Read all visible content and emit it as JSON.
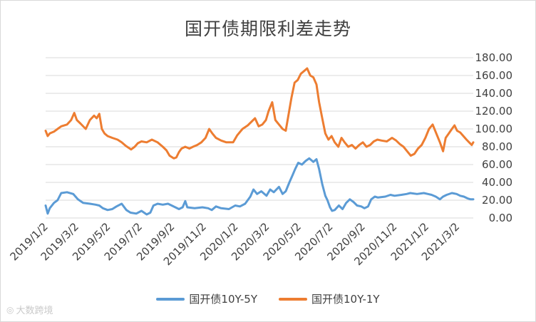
{
  "chart_data": {
    "type": "line",
    "title": "国开债期限利差走势",
    "xlabel": "",
    "ylabel": "",
    "ylim": [
      0,
      180
    ],
    "yticks": [
      "0.00",
      "20.00",
      "40.00",
      "60.00",
      "80.00",
      "100.00",
      "120.00",
      "140.00",
      "160.00",
      "180.00"
    ],
    "grid": true,
    "legend_position": "bottom",
    "x_start": "2019/1/2",
    "x_end": "2021/4/2",
    "categories": [
      "2019/1/2",
      "2019/3/2",
      "2019/5/2",
      "2019/7/2",
      "2019/9/2",
      "2019/11/2",
      "2020/1/2",
      "2020/3/2",
      "2020/5/2",
      "2020/7/2",
      "2020/9/2",
      "2020/11/2",
      "2021/1/2",
      "2021/3/2"
    ],
    "series": [
      {
        "name": "国开债10Y-5Y",
        "color": "#5b9bd5",
        "points": [
          [
            "2019-01-02",
            14
          ],
          [
            "2019-01-06",
            5
          ],
          [
            "2019-01-10",
            11
          ],
          [
            "2019-01-18",
            17
          ],
          [
            "2019-01-25",
            20
          ],
          [
            "2019-02-01",
            28
          ],
          [
            "2019-02-12",
            29
          ],
          [
            "2019-02-24",
            27
          ],
          [
            "2019-03-05",
            21
          ],
          [
            "2019-03-15",
            17
          ],
          [
            "2019-03-28",
            16
          ],
          [
            "2019-04-08",
            15
          ],
          [
            "2019-04-15",
            14
          ],
          [
            "2019-04-22",
            11
          ],
          [
            "2019-05-01",
            9
          ],
          [
            "2019-05-10",
            10
          ],
          [
            "2019-05-18",
            13
          ],
          [
            "2019-05-28",
            16
          ],
          [
            "2019-06-06",
            9
          ],
          [
            "2019-06-14",
            6
          ],
          [
            "2019-06-25",
            5
          ],
          [
            "2019-07-05",
            8
          ],
          [
            "2019-07-15",
            4
          ],
          [
            "2019-07-22",
            6
          ],
          [
            "2019-07-28",
            14
          ],
          [
            "2019-08-05",
            16
          ],
          [
            "2019-08-15",
            15
          ],
          [
            "2019-08-25",
            16
          ],
          [
            "2019-09-01",
            14
          ],
          [
            "2019-09-08",
            12
          ],
          [
            "2019-09-15",
            10
          ],
          [
            "2019-09-22",
            12
          ],
          [
            "2019-09-27",
            19
          ],
          [
            "2019-10-01",
            12
          ],
          [
            "2019-10-15",
            11
          ],
          [
            "2019-10-30",
            12
          ],
          [
            "2019-11-10",
            11
          ],
          [
            "2019-11-17",
            9
          ],
          [
            "2019-11-25",
            13
          ],
          [
            "2019-12-05",
            11
          ],
          [
            "2019-12-20",
            10
          ],
          [
            "2020-01-01",
            14
          ],
          [
            "2020-01-10",
            13
          ],
          [
            "2020-01-20",
            16
          ],
          [
            "2020-01-30",
            24
          ],
          [
            "2020-02-05",
            32
          ],
          [
            "2020-02-12",
            27
          ],
          [
            "2020-02-20",
            30
          ],
          [
            "2020-03-01",
            25
          ],
          [
            "2020-03-08",
            32
          ],
          [
            "2020-03-15",
            29
          ],
          [
            "2020-03-25",
            35
          ],
          [
            "2020-04-01",
            27
          ],
          [
            "2020-04-07",
            30
          ],
          [
            "2020-04-14",
            40
          ],
          [
            "2020-04-20",
            48
          ],
          [
            "2020-04-25",
            55
          ],
          [
            "2020-05-01",
            62
          ],
          [
            "2020-05-08",
            60
          ],
          [
            "2020-05-15",
            64
          ],
          [
            "2020-05-22",
            67
          ],
          [
            "2020-05-30",
            63
          ],
          [
            "2020-06-05",
            66
          ],
          [
            "2020-06-10",
            55
          ],
          [
            "2020-06-16",
            38
          ],
          [
            "2020-06-22",
            25
          ],
          [
            "2020-06-26",
            20
          ],
          [
            "2020-07-01",
            12
          ],
          [
            "2020-07-05",
            8
          ],
          [
            "2020-07-10",
            9
          ],
          [
            "2020-07-18",
            14
          ],
          [
            "2020-07-25",
            10
          ],
          [
            "2020-08-01",
            17
          ],
          [
            "2020-08-08",
            21
          ],
          [
            "2020-08-15",
            18
          ],
          [
            "2020-08-22",
            14
          ],
          [
            "2020-08-30",
            13
          ],
          [
            "2020-09-05",
            11
          ],
          [
            "2020-09-12",
            13
          ],
          [
            "2020-09-18",
            21
          ],
          [
            "2020-09-25",
            24
          ],
          [
            "2020-10-01",
            23
          ],
          [
            "2020-10-15",
            24
          ],
          [
            "2020-10-25",
            26
          ],
          [
            "2020-11-02",
            25
          ],
          [
            "2020-11-15",
            26
          ],
          [
            "2020-11-25",
            27
          ],
          [
            "2020-12-02",
            28
          ],
          [
            "2020-12-15",
            27
          ],
          [
            "2020-12-28",
            28
          ],
          [
            "2021-01-05",
            27
          ],
          [
            "2021-01-12",
            26
          ],
          [
            "2021-01-20",
            24
          ],
          [
            "2021-01-28",
            21
          ],
          [
            "2021-02-03",
            24
          ],
          [
            "2021-02-10",
            26
          ],
          [
            "2021-02-20",
            28
          ],
          [
            "2021-03-01",
            27
          ],
          [
            "2021-03-08",
            25
          ],
          [
            "2021-03-15",
            24
          ],
          [
            "2021-03-22",
            22
          ],
          [
            "2021-03-28",
            21
          ],
          [
            "2021-04-02",
            21
          ]
        ]
      },
      {
        "name": "国开债10Y-1Y",
        "color": "#ed7d31",
        "points": [
          [
            "2019-01-02",
            98
          ],
          [
            "2019-01-06",
            92
          ],
          [
            "2019-01-10",
            95
          ],
          [
            "2019-01-18",
            97
          ],
          [
            "2019-01-25",
            100
          ],
          [
            "2019-02-01",
            103
          ],
          [
            "2019-02-12",
            105
          ],
          [
            "2019-02-20",
            110
          ],
          [
            "2019-02-26",
            118
          ],
          [
            "2019-03-03",
            110
          ],
          [
            "2019-03-10",
            106
          ],
          [
            "2019-03-20",
            100
          ],
          [
            "2019-03-28",
            110
          ],
          [
            "2019-04-05",
            115
          ],
          [
            "2019-04-10",
            112
          ],
          [
            "2019-04-15",
            117
          ],
          [
            "2019-04-20",
            100
          ],
          [
            "2019-04-25",
            95
          ],
          [
            "2019-05-01",
            92
          ],
          [
            "2019-05-10",
            90
          ],
          [
            "2019-05-20",
            88
          ],
          [
            "2019-05-28",
            85
          ],
          [
            "2019-06-05",
            81
          ],
          [
            "2019-06-15",
            77
          ],
          [
            "2019-06-22",
            80
          ],
          [
            "2019-06-28",
            84
          ],
          [
            "2019-07-05",
            86
          ],
          [
            "2019-07-15",
            85
          ],
          [
            "2019-07-25",
            88
          ],
          [
            "2019-08-05",
            85
          ],
          [
            "2019-08-15",
            80
          ],
          [
            "2019-08-22",
            76
          ],
          [
            "2019-08-28",
            70
          ],
          [
            "2019-09-05",
            67
          ],
          [
            "2019-09-10",
            68
          ],
          [
            "2019-09-15",
            74
          ],
          [
            "2019-09-20",
            78
          ],
          [
            "2019-09-27",
            80
          ],
          [
            "2019-10-05",
            78
          ],
          [
            "2019-10-12",
            80
          ],
          [
            "2019-10-20",
            82
          ],
          [
            "2019-10-28",
            85
          ],
          [
            "2019-11-05",
            90
          ],
          [
            "2019-11-12",
            100
          ],
          [
            "2019-11-18",
            95
          ],
          [
            "2019-11-25",
            90
          ],
          [
            "2019-12-05",
            87
          ],
          [
            "2019-12-15",
            85
          ],
          [
            "2019-12-28",
            85
          ],
          [
            "2020-01-05",
            93
          ],
          [
            "2020-01-15",
            100
          ],
          [
            "2020-01-25",
            104
          ],
          [
            "2020-02-01",
            108
          ],
          [
            "2020-02-08",
            112
          ],
          [
            "2020-02-15",
            103
          ],
          [
            "2020-02-22",
            105
          ],
          [
            "2020-02-29",
            110
          ],
          [
            "2020-03-05",
            120
          ],
          [
            "2020-03-12",
            130
          ],
          [
            "2020-03-18",
            110
          ],
          [
            "2020-03-25",
            105
          ],
          [
            "2020-04-01",
            100
          ],
          [
            "2020-04-07",
            98
          ],
          [
            "2020-04-12",
            115
          ],
          [
            "2020-04-18",
            135
          ],
          [
            "2020-04-24",
            152
          ],
          [
            "2020-04-30",
            155
          ],
          [
            "2020-05-06",
            162
          ],
          [
            "2020-05-12",
            165
          ],
          [
            "2020-05-18",
            168
          ],
          [
            "2020-05-24",
            160
          ],
          [
            "2020-05-30",
            158
          ],
          [
            "2020-06-05",
            150
          ],
          [
            "2020-06-10",
            130
          ],
          [
            "2020-06-16",
            112
          ],
          [
            "2020-06-22",
            95
          ],
          [
            "2020-06-28",
            88
          ],
          [
            "2020-07-04",
            92
          ],
          [
            "2020-07-10",
            85
          ],
          [
            "2020-07-17",
            80
          ],
          [
            "2020-07-23",
            90
          ],
          [
            "2020-07-29",
            85
          ],
          [
            "2020-08-05",
            80
          ],
          [
            "2020-08-12",
            82
          ],
          [
            "2020-08-19",
            78
          ],
          [
            "2020-08-26",
            82
          ],
          [
            "2020-09-02",
            85
          ],
          [
            "2020-09-09",
            80
          ],
          [
            "2020-09-16",
            82
          ],
          [
            "2020-09-23",
            86
          ],
          [
            "2020-09-30",
            88
          ],
          [
            "2020-10-08",
            87
          ],
          [
            "2020-10-18",
            86
          ],
          [
            "2020-10-28",
            90
          ],
          [
            "2020-11-05",
            87
          ],
          [
            "2020-11-12",
            83
          ],
          [
            "2020-11-19",
            80
          ],
          [
            "2020-11-26",
            75
          ],
          [
            "2020-12-03",
            70
          ],
          [
            "2020-12-10",
            72
          ],
          [
            "2020-12-17",
            78
          ],
          [
            "2020-12-24",
            82
          ],
          [
            "2020-12-31",
            90
          ],
          [
            "2021-01-07",
            100
          ],
          [
            "2021-01-14",
            105
          ],
          [
            "2021-01-21",
            95
          ],
          [
            "2021-01-28",
            85
          ],
          [
            "2021-02-03",
            75
          ],
          [
            "2021-02-08",
            90
          ],
          [
            "2021-02-14",
            95
          ],
          [
            "2021-02-20",
            100
          ],
          [
            "2021-02-25",
            104
          ],
          [
            "2021-03-02",
            98
          ],
          [
            "2021-03-08",
            96
          ],
          [
            "2021-03-14",
            92
          ],
          [
            "2021-03-20",
            88
          ],
          [
            "2021-03-25",
            85
          ],
          [
            "2021-03-30",
            82
          ],
          [
            "2021-04-02",
            85
          ]
        ]
      }
    ]
  },
  "watermark": "大数跨境"
}
